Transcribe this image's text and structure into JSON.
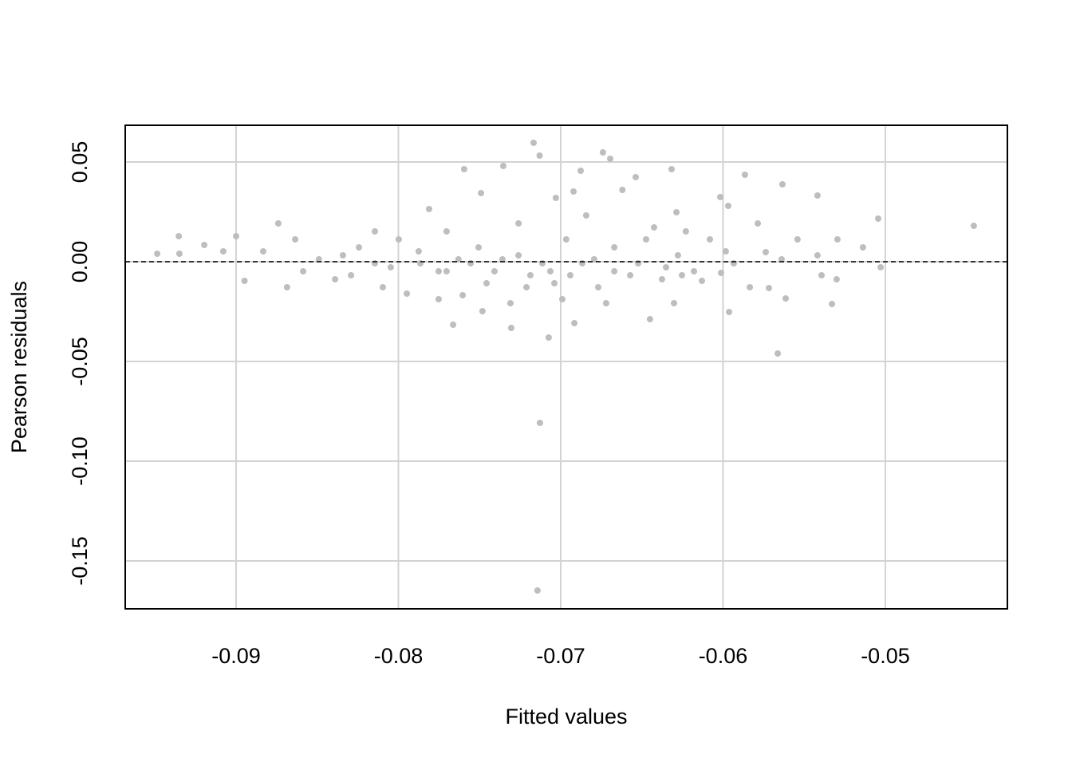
{
  "chart_data": {
    "type": "scatter",
    "x_label": "Fitted values",
    "y_label": "Pearson residuals",
    "xlim": [
      -0.09683,
      -0.04248
    ],
    "ylim": [
      -0.174,
      0.0684
    ],
    "xticks": [
      -0.09,
      -0.08,
      -0.07,
      -0.06,
      -0.05
    ],
    "yticks": [
      -0.15,
      {
        "value": -0.1,
        "label": "-0.10"
      },
      -0.05,
      {
        "value": 0,
        "label": "0.00"
      },
      0.05
    ],
    "grid": true,
    "color": "#bebebe",
    "hline": 0,
    "x": [
      -0.04455,
      -0.07143,
      -0.07128,
      -0.05663,
      -0.07167,
      -0.0713,
      -0.06877,
      -0.0674,
      -0.06695,
      -0.07595,
      -0.07354,
      -0.06317,
      -0.05865,
      -0.05044,
      -0.05418,
      -0.05634,
      -0.07074,
      -0.07663,
      -0.07305,
      -0.05329,
      -0.09486,
      -0.09353,
      -0.09196,
      -0.09,
      -0.08948,
      -0.0874,
      -0.07811,
      -0.06538,
      -0.06287,
      -0.06017,
      -0.05968,
      -0.06012,
      -0.05963,
      -0.05295,
      -0.05138,
      -0.05029,
      -0.053,
      -0.05717,
      -0.05614,
      -0.0703,
      -0.06921,
      -0.0662,
      -0.07491,
      -0.07865,
      -0.07998,
      -0.08243,
      -0.0849,
      -0.08686,
      -0.0839,
      -0.08145,
      -0.07948,
      -0.07752,
      -0.07604,
      -0.07506,
      -0.07408,
      -0.0726,
      -0.07211,
      -0.07064,
      -0.06966,
      -0.06867,
      -0.06769,
      -0.0667,
      -0.06572,
      -0.06474,
      -0.06376,
      -0.06278,
      -0.06179,
      -0.06081,
      -0.05934,
      -0.05835,
      -0.05737,
      -0.05541,
      -0.05418,
      -0.07482,
      -0.0699,
      -0.06916,
      -0.0645,
      -0.0672,
      -0.0731,
      -0.07752,
      -0.08096,
      -0.08292,
      -0.08587,
      -0.08833,
      -0.09079,
      -0.09349,
      -0.0726,
      -0.07703,
      -0.08145,
      -0.06229,
      -0.05786,
      -0.06843,
      -0.06425,
      -0.0613,
      -0.06302,
      -0.07039,
      -0.07187,
      -0.07359,
      -0.0763,
      -0.07875,
      -0.08047,
      -0.08342,
      -0.08636,
      -0.05983,
      -0.05639,
      -0.05393,
      -0.0667,
      -0.06523,
      -0.06351,
      -0.06253,
      -0.06794,
      -0.06941,
      -0.07113,
      -0.07457,
      -0.07555,
      -0.07703
    ],
    "y": [
      0.018,
      -0.1648,
      -0.0808,
      -0.046,
      0.0596,
      0.0532,
      0.0456,
      0.0548,
      0.0516,
      0.0464,
      0.048,
      0.0464,
      0.0436,
      0.0216,
      0.0332,
      0.0388,
      -0.038,
      -0.0316,
      -0.0332,
      -0.0212,
      0.004,
      0.0128,
      0.0084,
      0.0128,
      -0.0096,
      0.0192,
      0.0264,
      0.0424,
      0.0248,
      0.0324,
      0.028,
      -0.0056,
      -0.0252,
      0.0112,
      0.0072,
      -0.0028,
      -0.0088,
      -0.0132,
      -0.0184,
      0.032,
      0.0352,
      0.036,
      0.0344,
      -0.0008,
      0.0112,
      0.0072,
      0.0012,
      -0.0128,
      -0.0088,
      -0.0008,
      -0.016,
      -0.0048,
      -0.0168,
      0.0072,
      -0.0048,
      0.0032,
      -0.0128,
      -0.0048,
      0.0112,
      -0.0008,
      -0.0128,
      0.0072,
      -0.0068,
      0.0112,
      -0.0088,
      0.0032,
      -0.0048,
      0.0112,
      -0.0008,
      -0.0128,
      0.0048,
      0.0112,
      0.0032,
      -0.0248,
      -0.0188,
      -0.0308,
      -0.0288,
      -0.0208,
      -0.0208,
      -0.0188,
      -0.0128,
      -0.0068,
      -0.0048,
      0.0052,
      0.0052,
      0.004,
      0.0192,
      0.0152,
      0.0152,
      0.0152,
      0.0192,
      0.0232,
      0.0172,
      -0.0096,
      -0.0208,
      -0.0108,
      -0.0068,
      0.0012,
      0.0012,
      0.0052,
      -0.0028,
      0.0032,
      0.0112,
      0.0052,
      0.0012,
      -0.0068,
      -0.0048,
      -0.0008,
      -0.0028,
      -0.0068,
      0.0012,
      -0.0068,
      -0.0008,
      -0.0108,
      -0.0008,
      -0.0048
    ]
  }
}
